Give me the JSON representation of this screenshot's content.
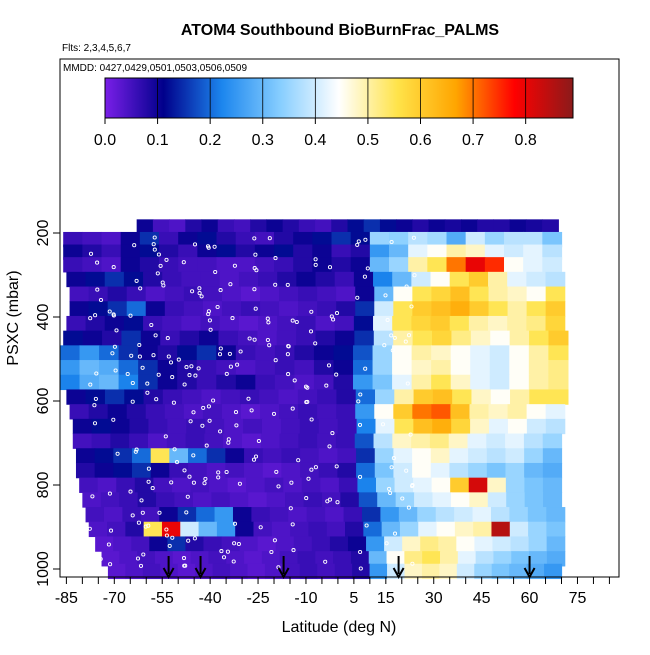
{
  "chart_data": {
    "type": "heatmap",
    "title": "ATOM4 Southbound BioBurnFrac_PALMS",
    "subtitle_flights": "Flts: 2,3,4,5,6,7",
    "subtitle_dates": "MMDD: 0427,0429,0501,0503,0506,0509",
    "xlabel": "Latitude (deg N)",
    "ylabel": "PSXC (mbar)",
    "xlim": [
      -87,
      88
    ],
    "ylim_pressure": [
      1030,
      120
    ],
    "x_ticks_labeled": [
      "-85",
      "-70",
      "-55",
      "-40",
      "-25",
      "-10",
      "5",
      "15",
      "30",
      "45",
      "60",
      "75"
    ],
    "y_ticks_labeled": [
      "200",
      "400",
      "600",
      "800",
      "1000"
    ],
    "colorbar": {
      "min": 0,
      "max": 0.89,
      "tick_labels": [
        "0.0",
        "0.1",
        "0.2",
        "0.3",
        "0.4",
        "0.5",
        "0.6",
        "0.7",
        "0.8"
      ],
      "colors": [
        "#7a1fe8",
        "#00008b",
        "#1c86ee",
        "#87ceff",
        "#ffffff",
        "#ffe34a",
        "#ffa500",
        "#ff0000",
        "#8b1a1a"
      ]
    },
    "arrow_latitudes": [
      -53,
      -43,
      -17,
      19,
      60
    ],
    "series_description": "Curtain plot of biomass burning fraction vs latitude and pressure",
    "values_note": "low (0.0-0.15) south of 15N, elevated (0.4-0.85) north of 15N",
    "grid_rows": [
      {
        "p": 185,
        "x0": -63,
        "x1": 69,
        "v": [
          0.1,
          0.05,
          0.04,
          0.08,
          0.1,
          0.06,
          0.05,
          0.08,
          0.1,
          0.08,
          0.06,
          0.05,
          0.08,
          0.12,
          0.15,
          0.12,
          0.1,
          0.08,
          0.1,
          0.09,
          0.1,
          0.08,
          0.08,
          0.1,
          0.09,
          0.08
        ]
      },
      {
        "p": 215,
        "x0": -86,
        "x1": 70,
        "v": [
          0.06,
          0.05,
          0.04,
          0.1,
          0.15,
          0.06,
          0.1,
          0.12,
          0.08,
          0.06,
          0.05,
          0.08,
          0.1,
          0.12,
          0.15,
          0.12,
          0.35,
          0.34,
          0.38,
          0.36,
          0.28,
          0.4,
          0.35,
          0.38,
          0.38,
          0.32
        ]
      },
      {
        "p": 245,
        "x0": -86,
        "x1": 70,
        "v": [
          0.1,
          0.08,
          0.06,
          0.1,
          0.12,
          0.08,
          0.06,
          0.1,
          0.12,
          0.08,
          0.1,
          0.12,
          0.08,
          0.1,
          0.06,
          0.08,
          0.25,
          0.3,
          0.42,
          0.45,
          0.5,
          0.48,
          0.42,
          0.4,
          0.42,
          0.38
        ]
      },
      {
        "p": 275,
        "x0": -86,
        "x1": 70,
        "v": [
          0.06,
          0.05,
          0.04,
          0.1,
          0.08,
          0.06,
          0.05,
          0.05,
          0.04,
          0.04,
          0.05,
          0.06,
          0.08,
          0.1,
          0.08,
          0.1,
          0.3,
          0.35,
          0.5,
          0.55,
          0.7,
          0.8,
          0.75,
          0.45,
          0.42,
          0.4
        ]
      },
      {
        "p": 310,
        "x0": -85,
        "x1": 71,
        "v": [
          0.1,
          0.12,
          0.15,
          0.12,
          0.08,
          0.06,
          0.05,
          0.05,
          0.04,
          0.05,
          0.06,
          0.08,
          0.1,
          0.08,
          0.06,
          0.1,
          0.22,
          0.3,
          0.4,
          0.45,
          0.55,
          0.6,
          0.5,
          0.42,
          0.4,
          0.38
        ]
      },
      {
        "p": 345,
        "x0": -84,
        "x1": 71,
        "v": [
          0.05,
          0.06,
          0.08,
          0.06,
          0.04,
          0.05,
          0.06,
          0.05,
          0.04,
          0.03,
          0.04,
          0.05,
          0.06,
          0.05,
          0.04,
          0.1,
          0.3,
          0.45,
          0.55,
          0.58,
          0.62,
          0.55,
          0.5,
          0.48,
          0.45,
          0.55
        ]
      },
      {
        "p": 380,
        "x0": -84,
        "x1": 71,
        "v": [
          0.1,
          0.12,
          0.15,
          0.2,
          0.1,
          0.06,
          0.05,
          0.04,
          0.05,
          0.06,
          0.05,
          0.04,
          0.05,
          0.06,
          0.08,
          0.15,
          0.4,
          0.55,
          0.6,
          0.62,
          0.65,
          0.6,
          0.55,
          0.5,
          0.55,
          0.6
        ]
      },
      {
        "p": 415,
        "x0": -85,
        "x1": 71,
        "v": [
          0.06,
          0.08,
          0.1,
          0.12,
          0.06,
          0.05,
          0.04,
          0.05,
          0.04,
          0.03,
          0.04,
          0.05,
          0.06,
          0.04,
          0.05,
          0.12,
          0.42,
          0.55,
          0.58,
          0.6,
          0.55,
          0.5,
          0.48,
          0.5,
          0.52,
          0.58
        ]
      },
      {
        "p": 450,
        "x0": -86,
        "x1": 72,
        "v": [
          0.12,
          0.1,
          0.08,
          0.15,
          0.1,
          0.06,
          0.08,
          0.1,
          0.06,
          0.05,
          0.04,
          0.05,
          0.06,
          0.08,
          0.1,
          0.15,
          0.38,
          0.5,
          0.55,
          0.58,
          0.52,
          0.48,
          0.45,
          0.5,
          0.55,
          0.6
        ]
      },
      {
        "p": 485,
        "x0": -87,
        "x1": 72,
        "v": [
          0.2,
          0.25,
          0.2,
          0.15,
          0.1,
          0.08,
          0.12,
          0.15,
          0.1,
          0.06,
          0.05,
          0.06,
          0.08,
          0.1,
          0.12,
          0.18,
          0.35,
          0.45,
          0.5,
          0.48,
          0.45,
          0.42,
          0.4,
          0.45,
          0.5,
          0.55
        ]
      },
      {
        "p": 520,
        "x0": -87,
        "x1": 72,
        "v": [
          0.25,
          0.3,
          0.28,
          0.2,
          0.15,
          0.1,
          0.08,
          0.06,
          0.05,
          0.04,
          0.05,
          0.06,
          0.05,
          0.08,
          0.1,
          0.2,
          0.35,
          0.45,
          0.48,
          0.5,
          0.45,
          0.42,
          0.4,
          0.45,
          0.5,
          0.52
        ]
      },
      {
        "p": 555,
        "x0": -87,
        "x1": 72,
        "v": [
          0.22,
          0.28,
          0.3,
          0.22,
          0.15,
          0.1,
          0.08,
          0.06,
          0.08,
          0.1,
          0.06,
          0.05,
          0.04,
          0.05,
          0.08,
          0.25,
          0.32,
          0.42,
          0.5,
          0.55,
          0.48,
          0.42,
          0.4,
          0.45,
          0.5,
          0.52
        ]
      },
      {
        "p": 590,
        "x0": -85,
        "x1": 72,
        "v": [
          0.1,
          0.12,
          0.15,
          0.12,
          0.08,
          0.06,
          0.05,
          0.04,
          0.05,
          0.06,
          0.05,
          0.04,
          0.05,
          0.06,
          0.08,
          0.2,
          0.35,
          0.5,
          0.6,
          0.62,
          0.55,
          0.48,
          0.45,
          0.5,
          0.55,
          0.55
        ]
      },
      {
        "p": 625,
        "x0": -84,
        "x1": 71,
        "v": [
          0.06,
          0.08,
          0.1,
          0.08,
          0.06,
          0.05,
          0.04,
          0.05,
          0.04,
          0.03,
          0.04,
          0.05,
          0.06,
          0.05,
          0.06,
          0.25,
          0.45,
          0.6,
          0.7,
          0.72,
          0.62,
          0.5,
          0.48,
          0.5,
          0.45,
          0.42
        ]
      },
      {
        "p": 660,
        "x0": -83,
        "x1": 71,
        "v": [
          0.1,
          0.12,
          0.1,
          0.08,
          0.06,
          0.05,
          0.06,
          0.05,
          0.04,
          0.05,
          0.04,
          0.05,
          0.06,
          0.05,
          0.06,
          0.22,
          0.42,
          0.55,
          0.62,
          0.65,
          0.58,
          0.48,
          0.42,
          0.45,
          0.4,
          0.38
        ]
      },
      {
        "p": 695,
        "x0": -83,
        "x1": 70,
        "v": [
          0.05,
          0.06,
          0.08,
          0.06,
          0.04,
          0.05,
          0.06,
          0.05,
          0.04,
          0.03,
          0.04,
          0.05,
          0.06,
          0.05,
          0.06,
          0.18,
          0.38,
          0.48,
          0.5,
          0.52,
          0.48,
          0.42,
          0.4,
          0.42,
          0.38,
          0.35
        ]
      },
      {
        "p": 730,
        "x0": -82,
        "x1": 70,
        "v": [
          0.1,
          0.12,
          0.15,
          0.2,
          0.55,
          0.3,
          0.2,
          0.15,
          0.1,
          0.06,
          0.05,
          0.06,
          0.05,
          0.04,
          0.05,
          0.15,
          0.35,
          0.42,
          0.45,
          0.48,
          0.42,
          0.4,
          0.38,
          0.4,
          0.35,
          0.3
        ]
      },
      {
        "p": 765,
        "x0": -82,
        "x1": 70,
        "v": [
          0.08,
          0.1,
          0.12,
          0.15,
          0.1,
          0.06,
          0.05,
          0.04,
          0.05,
          0.04,
          0.03,
          0.04,
          0.05,
          0.06,
          0.08,
          0.2,
          0.32,
          0.4,
          0.45,
          0.42,
          0.38,
          0.35,
          0.32,
          0.35,
          0.3,
          0.28
        ]
      },
      {
        "p": 800,
        "x0": -81,
        "x1": 70,
        "v": [
          0.05,
          0.04,
          0.06,
          0.08,
          0.05,
          0.04,
          0.05,
          0.04,
          0.03,
          0.04,
          0.05,
          0.04,
          0.05,
          0.04,
          0.06,
          0.22,
          0.35,
          0.4,
          0.42,
          0.45,
          0.6,
          0.82,
          0.48,
          0.35,
          0.32,
          0.3
        ]
      },
      {
        "p": 835,
        "x0": -80,
        "x1": 70,
        "v": [
          0.04,
          0.05,
          0.06,
          0.08,
          0.06,
          0.05,
          0.04,
          0.05,
          0.04,
          0.03,
          0.04,
          0.05,
          0.06,
          0.05,
          0.08,
          0.18,
          0.3,
          0.35,
          0.4,
          0.42,
          0.45,
          0.48,
          0.4,
          0.35,
          0.32,
          0.3
        ]
      },
      {
        "p": 870,
        "x0": -79,
        "x1": 71,
        "v": [
          0.05,
          0.04,
          0.06,
          0.05,
          0.1,
          0.15,
          0.2,
          0.25,
          0.1,
          0.06,
          0.05,
          0.04,
          0.05,
          0.04,
          0.06,
          0.15,
          0.25,
          0.3,
          0.35,
          0.38,
          0.4,
          0.42,
          0.38,
          0.35,
          0.32,
          0.3
        ]
      },
      {
        "p": 905,
        "x0": -78,
        "x1": 71,
        "v": [
          0.04,
          0.05,
          0.08,
          0.55,
          0.8,
          0.4,
          0.3,
          0.25,
          0.1,
          0.05,
          0.04,
          0.05,
          0.06,
          0.05,
          0.08,
          0.2,
          0.3,
          0.35,
          0.42,
          0.45,
          0.48,
          0.5,
          0.85,
          0.4,
          0.35,
          0.32
        ]
      },
      {
        "p": 940,
        "x0": -76,
        "x1": 71,
        "v": [
          0.03,
          0.04,
          0.05,
          0.1,
          0.15,
          0.08,
          0.06,
          0.05,
          0.04,
          0.03,
          0.04,
          0.05,
          0.06,
          0.08,
          0.1,
          0.25,
          0.4,
          0.48,
          0.52,
          0.5,
          0.45,
          0.42,
          0.4,
          0.38,
          0.35,
          0.3
        ]
      },
      {
        "p": 975,
        "x0": -74,
        "x1": 71,
        "v": [
          0.03,
          0.04,
          0.05,
          0.04,
          0.03,
          0.04,
          0.05,
          0.04,
          0.03,
          0.04,
          0.05,
          0.06,
          0.05,
          0.06,
          0.08,
          0.3,
          0.45,
          0.52,
          0.55,
          0.5,
          0.42,
          0.38,
          0.35,
          0.32,
          0.3,
          0.28
        ]
      },
      {
        "p": 1005,
        "x0": -72,
        "x1": 70,
        "v": [
          0.03,
          0.04,
          0.05,
          0.04,
          0.03,
          0.04,
          0.05,
          0.04,
          0.03,
          0.04,
          0.05,
          0.06,
          0.05,
          0.06,
          0.08,
          0.25,
          0.4,
          0.48,
          0.5,
          0.48,
          0.4,
          0.35,
          0.32,
          0.3,
          0.28,
          0.25
        ]
      }
    ]
  }
}
